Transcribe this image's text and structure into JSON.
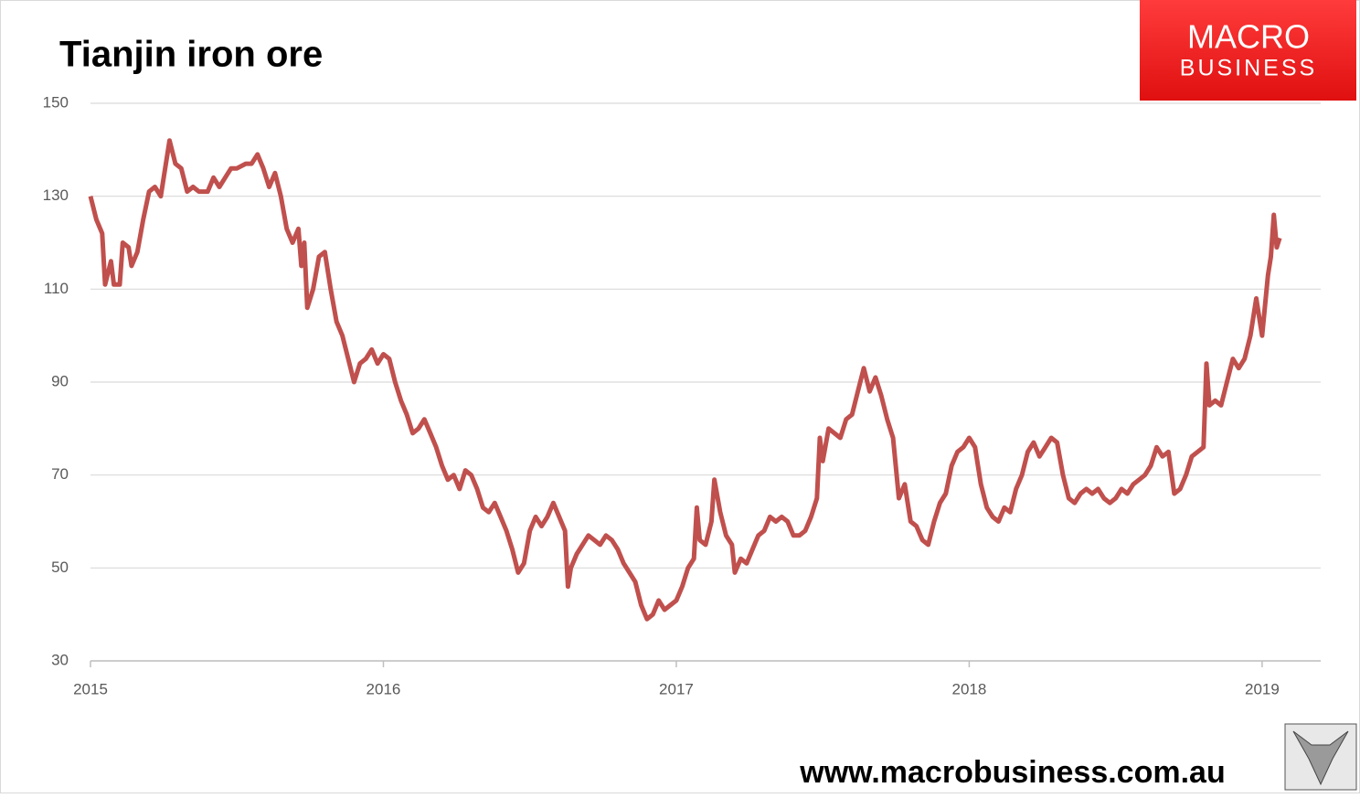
{
  "chart_data": {
    "type": "line",
    "title": "Tianjin iron ore",
    "logo": {
      "line1": "MACRO",
      "line2": "BUSINESS"
    },
    "footer": "www.macrobusiness.com.au",
    "color": "#c0504d",
    "grid": true,
    "xlim": [
      2015,
      2019.2
    ],
    "xticks": [
      2015,
      2016,
      2017,
      2018,
      2019
    ],
    "ylim": [
      30,
      150
    ],
    "yticks": [
      30,
      50,
      70,
      90,
      110,
      130,
      150
    ],
    "x": [
      2015.0,
      2015.02,
      2015.04,
      2015.05,
      2015.07,
      2015.08,
      2015.1,
      2015.11,
      2015.13,
      2015.14,
      2015.16,
      2015.18,
      2015.2,
      2015.22,
      2015.24,
      2015.26,
      2015.27,
      2015.29,
      2015.31,
      2015.33,
      2015.35,
      2015.37,
      2015.4,
      2015.42,
      2015.44,
      2015.46,
      2015.48,
      2015.5,
      2015.53,
      2015.55,
      2015.57,
      2015.59,
      2015.61,
      2015.63,
      2015.65,
      2015.67,
      2015.69,
      2015.71,
      2015.72,
      2015.73,
      2015.74,
      2015.76,
      2015.78,
      2015.8,
      2015.82,
      2015.84,
      2015.86,
      2015.88,
      2015.9,
      2015.92,
      2015.94,
      2015.96,
      2015.98,
      2016.0,
      2016.02,
      2016.04,
      2016.06,
      2016.08,
      2016.1,
      2016.12,
      2016.14,
      2016.16,
      2016.18,
      2016.2,
      2016.22,
      2016.24,
      2016.26,
      2016.28,
      2016.3,
      2016.32,
      2016.34,
      2016.36,
      2016.38,
      2016.4,
      2016.42,
      2016.44,
      2016.46,
      2016.48,
      2016.5,
      2016.52,
      2016.54,
      2016.56,
      2016.58,
      2016.6,
      2016.62,
      2016.63,
      2016.64,
      2016.66,
      2016.68,
      2016.7,
      2016.72,
      2016.74,
      2016.76,
      2016.78,
      2016.8,
      2016.82,
      2016.84,
      2016.86,
      2016.88,
      2016.9,
      2016.92,
      2016.94,
      2016.96,
      2016.98,
      2017.0,
      2017.02,
      2017.04,
      2017.06,
      2017.07,
      2017.08,
      2017.1,
      2017.12,
      2017.13,
      2017.15,
      2017.17,
      2017.19,
      2017.2,
      2017.22,
      2017.24,
      2017.26,
      2017.28,
      2017.3,
      2017.32,
      2017.34,
      2017.36,
      2017.38,
      2017.4,
      2017.42,
      2017.44,
      2017.46,
      2017.48,
      2017.49,
      2017.5,
      2017.52,
      2017.54,
      2017.56,
      2017.58,
      2017.6,
      2017.62,
      2017.64,
      2017.66,
      2017.68,
      2017.7,
      2017.72,
      2017.74,
      2017.76,
      2017.78,
      2017.8,
      2017.82,
      2017.84,
      2017.86,
      2017.88,
      2017.9,
      2017.92,
      2017.94,
      2017.96,
      2017.98,
      2018.0,
      2018.02,
      2018.04,
      2018.06,
      2018.08,
      2018.1,
      2018.12,
      2018.14,
      2018.16,
      2018.18,
      2018.2,
      2018.22,
      2018.24,
      2018.26,
      2018.28,
      2018.3,
      2018.32,
      2018.34,
      2018.36,
      2018.38,
      2018.4,
      2018.42,
      2018.44,
      2018.46,
      2018.48,
      2018.5,
      2018.52,
      2018.54,
      2018.56,
      2018.58,
      2018.6,
      2018.62,
      2018.64,
      2018.66,
      2018.68,
      2018.7,
      2018.72,
      2018.74,
      2018.76,
      2018.78,
      2018.8,
      2018.81,
      2018.82,
      2018.84,
      2018.86,
      2018.88,
      2018.9,
      2018.92,
      2018.94,
      2018.96,
      2018.98,
      2019.0,
      2019.02,
      2019.03,
      2019.04,
      2019.05,
      2019.06
    ],
    "values": [
      130,
      125,
      122,
      111,
      116,
      111,
      111,
      120,
      119,
      115,
      118,
      125,
      131,
      132,
      130,
      138,
      142,
      137,
      136,
      131,
      132,
      131,
      131,
      134,
      132,
      134,
      136,
      136,
      137,
      137,
      139,
      136,
      132,
      135,
      130,
      123,
      120,
      123,
      115,
      120,
      106,
      110,
      117,
      118,
      110,
      103,
      100,
      95,
      90,
      94,
      95,
      97,
      94,
      96,
      95,
      90,
      86,
      83,
      79,
      80,
      82,
      79,
      76,
      72,
      69,
      70,
      67,
      71,
      70,
      67,
      63,
      62,
      64,
      61,
      58,
      54,
      49,
      51,
      58,
      61,
      59,
      61,
      64,
      61,
      58,
      46,
      50,
      53,
      55,
      57,
      56,
      55,
      57,
      56,
      54,
      51,
      49,
      47,
      42,
      39,
      40,
      43,
      41,
      42,
      43,
      46,
      50,
      52,
      63,
      56,
      55,
      60,
      69,
      62,
      57,
      55,
      49,
      52,
      51,
      54,
      57,
      58,
      61,
      60,
      61,
      60,
      57,
      57,
      58,
      61,
      65,
      78,
      73,
      80,
      79,
      78,
      82,
      83,
      88,
      93,
      88,
      91,
      87,
      82,
      78,
      65,
      68,
      60,
      59,
      56,
      55,
      60,
      64,
      66,
      72,
      75,
      76,
      78,
      76,
      68,
      63,
      61,
      60,
      63,
      62,
      67,
      70,
      75,
      77,
      74,
      76,
      78,
      77,
      70,
      65,
      64,
      66,
      67,
      66,
      67,
      65,
      64,
      65,
      67,
      66,
      68,
      69,
      70,
      72,
      76,
      74,
      75,
      66,
      67,
      70,
      74,
      75,
      76,
      94,
      85,
      86,
      85,
      90,
      95,
      93,
      95,
      100,
      108,
      100,
      113,
      117,
      126,
      119,
      121
    ]
  }
}
